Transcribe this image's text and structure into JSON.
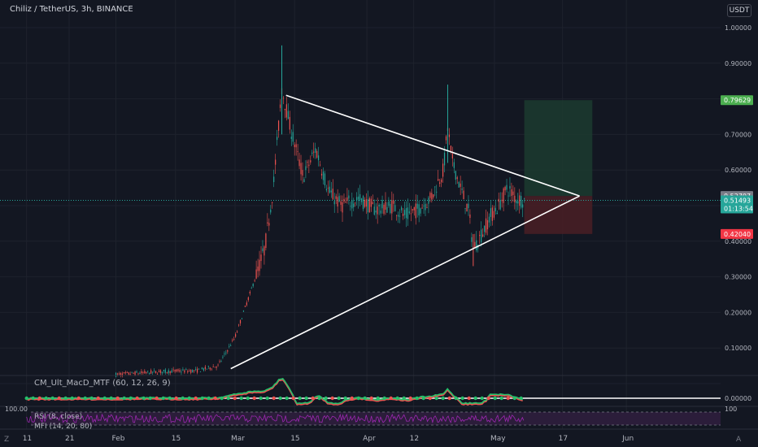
{
  "header": {
    "symbol_title": "Chiliz / TetherUS, 3h, BINANCE",
    "currency_button": "USDT"
  },
  "indicators": {
    "macd_label": "CM_Ult_MacD_MTF (60, 12, 26, 9)",
    "macd_value": "0.00000",
    "rsi_label": "RSI (8, close)",
    "mfi_label": "MFI (14, 20, 80)",
    "rsi_top_value": "100",
    "rsi_left_value": "100.00"
  },
  "corner_buttons": {
    "left": "Z",
    "right": "A"
  },
  "colors": {
    "background": "#131722",
    "up_candle": "#26a69a",
    "down_candle": "#ef5350",
    "trendline": "#ffffff",
    "profit_zone": "#1c3b2f",
    "loss_zone": "#4a1f25",
    "target_badge": "#4caf50",
    "stop_badge": "#f23645",
    "entry_badge": "#787b86",
    "current_badge": "#26a69a",
    "rsi_line": "#9c27b0"
  },
  "chart_data": {
    "type": "candlestick",
    "title": "Chiliz / TetherUS, 3h, BINANCE",
    "x_ticks": [
      "11",
      "21",
      "Feb",
      "15",
      "Mar",
      "15",
      "Apr",
      "12",
      "May",
      "17",
      "Jun"
    ],
    "y_ticks": [
      "1.00000",
      "0.90000",
      "0.70000",
      "0.60000",
      "0.40000",
      "0.30000",
      "0.20000",
      "0.10000"
    ],
    "ylim": [
      0.0,
      1.0
    ],
    "price_path": [
      [
        "2021-02-01",
        0.025
      ],
      [
        "2021-02-07",
        0.03
      ],
      [
        "2021-02-14",
        0.035
      ],
      [
        "2021-02-20",
        0.036
      ],
      [
        "2021-02-25",
        0.05
      ],
      [
        "2021-03-01",
        0.13
      ],
      [
        "2021-03-05",
        0.27
      ],
      [
        "2021-03-08",
        0.38
      ],
      [
        "2021-03-10",
        0.55
      ],
      [
        "2021-03-12",
        0.83
      ],
      [
        "2021-03-14",
        0.72
      ],
      [
        "2021-03-17",
        0.58
      ],
      [
        "2021-03-20",
        0.66
      ],
      [
        "2021-03-23",
        0.54
      ],
      [
        "2021-03-26",
        0.5
      ],
      [
        "2021-03-30",
        0.52
      ],
      [
        "2021-04-03",
        0.49
      ],
      [
        "2021-04-07",
        0.5
      ],
      [
        "2021-04-10",
        0.47
      ],
      [
        "2021-04-13",
        0.49
      ],
      [
        "2021-04-16",
        0.52
      ],
      [
        "2021-04-19",
        0.6
      ],
      [
        "2021-04-20",
        0.72
      ],
      [
        "2021-04-21",
        0.63
      ],
      [
        "2021-04-23",
        0.55
      ],
      [
        "2021-04-25",
        0.48
      ],
      [
        "2021-04-26",
        0.38
      ],
      [
        "2021-04-28",
        0.42
      ],
      [
        "2021-04-30",
        0.47
      ],
      [
        "2021-05-02",
        0.5
      ],
      [
        "2021-05-04",
        0.55
      ],
      [
        "2021-05-06",
        0.52
      ],
      [
        "2021-05-08",
        0.515
      ]
    ],
    "peaks": {
      "march_high": 0.95,
      "april_high": 0.84,
      "april_low": 0.33
    },
    "trendlines": [
      {
        "name": "upper",
        "from": [
          "2021-03-13",
          0.81
        ],
        "to": [
          "2021-05-21",
          0.527
        ]
      },
      {
        "name": "lower",
        "from": [
          "2021-02-28",
          0.042
        ],
        "to": [
          "2021-05-21",
          0.527
        ]
      }
    ],
    "position": {
      "entry": 0.52707,
      "target": 0.79629,
      "stop": 0.4204,
      "entry_label": "0.52707",
      "target_label": "0.79629",
      "stop_label": "0.42040",
      "start_date": "2021-05-08",
      "end_date": "2021-05-24"
    },
    "last_price": {
      "value": 0.51493,
      "label": "0.51493",
      "countdown": "01:13:54"
    }
  }
}
